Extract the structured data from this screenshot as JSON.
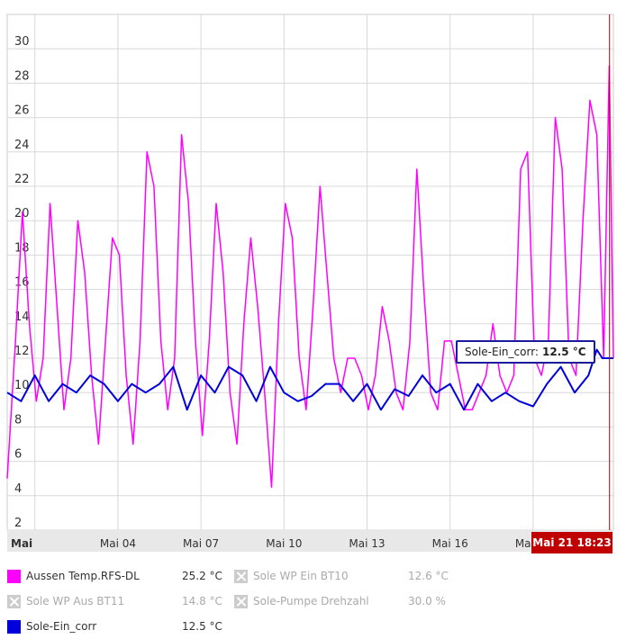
{
  "chart_data": {
    "type": "line",
    "ylim": [
      2,
      32
    ],
    "yticks": [
      2,
      4,
      6,
      8,
      10,
      12,
      14,
      16,
      18,
      20,
      22,
      24,
      26,
      28,
      30
    ],
    "xlim": [
      0,
      21.9
    ],
    "xticks": [
      {
        "day": 1,
        "label": "Mai"
      },
      {
        "day": 4,
        "label": "Mai 04"
      },
      {
        "day": 7,
        "label": "Mai 07"
      },
      {
        "day": 10,
        "label": "Mai 10"
      },
      {
        "day": 13,
        "label": "Mai 13"
      },
      {
        "day": 16,
        "label": "Mai 16"
      },
      {
        "day": 19,
        "label": "Mai 19"
      }
    ],
    "cursor": {
      "day": 21.76,
      "label": "Mai 21 18:23"
    },
    "grid": true,
    "series": [
      {
        "name": "Aussen Temp.RFS-DL",
        "color": "#ff00ff",
        "x": [
          0.0,
          0.3,
          0.55,
          0.8,
          1.05,
          1.3,
          1.55,
          1.8,
          2.05,
          2.3,
          2.55,
          2.8,
          3.05,
          3.3,
          3.55,
          3.8,
          4.05,
          4.3,
          4.55,
          4.8,
          5.05,
          5.3,
          5.55,
          5.8,
          6.05,
          6.3,
          6.55,
          6.8,
          7.05,
          7.3,
          7.55,
          7.8,
          8.05,
          8.3,
          8.55,
          8.8,
          9.05,
          9.3,
          9.55,
          9.8,
          10.05,
          10.3,
          10.55,
          10.8,
          11.05,
          11.3,
          11.55,
          11.8,
          12.05,
          12.3,
          12.55,
          12.8,
          13.05,
          13.3,
          13.55,
          13.8,
          14.05,
          14.3,
          14.55,
          14.8,
          15.05,
          15.3,
          15.55,
          15.8,
          16.05,
          16.3,
          16.55,
          16.8,
          17.05,
          17.3,
          17.55,
          17.8,
          18.05,
          18.3,
          18.55,
          18.8,
          19.05,
          19.3,
          19.55,
          19.8,
          20.05,
          20.3,
          20.55,
          20.8,
          21.05,
          21.3,
          21.55,
          21.75,
          21.9
        ],
        "y": [
          5,
          13,
          20.5,
          14,
          9.5,
          12,
          21,
          15,
          9,
          12,
          20,
          17,
          11,
          7,
          13,
          19,
          18,
          11,
          7,
          13,
          24,
          22,
          13,
          9,
          12,
          25,
          21,
          13,
          7.5,
          13,
          21,
          17,
          10,
          7,
          14,
          19,
          15,
          10,
          4.5,
          14,
          21,
          19,
          12,
          9,
          15,
          22,
          17,
          12,
          10,
          12,
          12,
          11,
          9,
          11,
          15,
          13,
          10,
          9,
          13,
          23,
          16,
          10,
          9,
          13,
          13,
          11,
          9,
          9,
          10,
          11,
          14,
          11,
          10,
          11,
          23,
          24,
          12,
          11,
          13,
          26,
          23,
          12,
          11,
          20,
          27,
          25,
          12,
          29,
          12
        ],
        "value_label": "25.2 °C"
      },
      {
        "name": "Sole-Ein_corr",
        "color": "#0000dd",
        "x": [
          0.0,
          0.5,
          1.0,
          1.5,
          2.0,
          2.5,
          3.0,
          3.5,
          4.0,
          4.5,
          5.0,
          5.5,
          6.0,
          6.5,
          7.0,
          7.5,
          8.0,
          8.5,
          9.0,
          9.5,
          10.0,
          10.5,
          11.0,
          11.5,
          12.0,
          12.5,
          13.0,
          13.5,
          14.0,
          14.5,
          15.0,
          15.5,
          16.0,
          16.5,
          17.0,
          17.5,
          18.0,
          18.5,
          19.0,
          19.5,
          20.0,
          20.5,
          21.0,
          21.3,
          21.5,
          21.9
        ],
        "y": [
          10,
          9.5,
          11,
          9.5,
          10.5,
          10,
          11,
          10.5,
          9.5,
          10.5,
          10,
          10.5,
          11.5,
          9,
          11,
          10,
          11.5,
          11,
          9.5,
          11.5,
          10,
          9.5,
          9.8,
          10.5,
          10.5,
          9.5,
          10.5,
          9,
          10.2,
          9.8,
          11,
          10,
          10.5,
          9,
          10.5,
          9.5,
          10,
          9.5,
          9.2,
          10.5,
          11.5,
          10,
          11,
          12.5,
          12,
          12
        ],
        "value_label": "12.5 °C"
      }
    ]
  },
  "tooltip": {
    "label": "Sole-Ein_corr:",
    "value": "12.5 °C"
  },
  "legend": {
    "items": [
      {
        "label": "Aussen Temp.RFS-DL",
        "value": "25.2 °C",
        "enabled": true,
        "color": "#ff00ff"
      },
      {
        "label": "Sole WP Ein BT10",
        "value": "12.6 °C",
        "enabled": false
      },
      {
        "label": "Sole WP Aus BT11",
        "value": "14.8 °C",
        "enabled": false
      },
      {
        "label": "Sole-Pumpe Drehzahl",
        "value": "30.0 %",
        "enabled": false
      },
      {
        "label": "Sole-Ein_corr",
        "value": "12.5 °C",
        "enabled": true,
        "color": "#0000dd"
      }
    ]
  }
}
